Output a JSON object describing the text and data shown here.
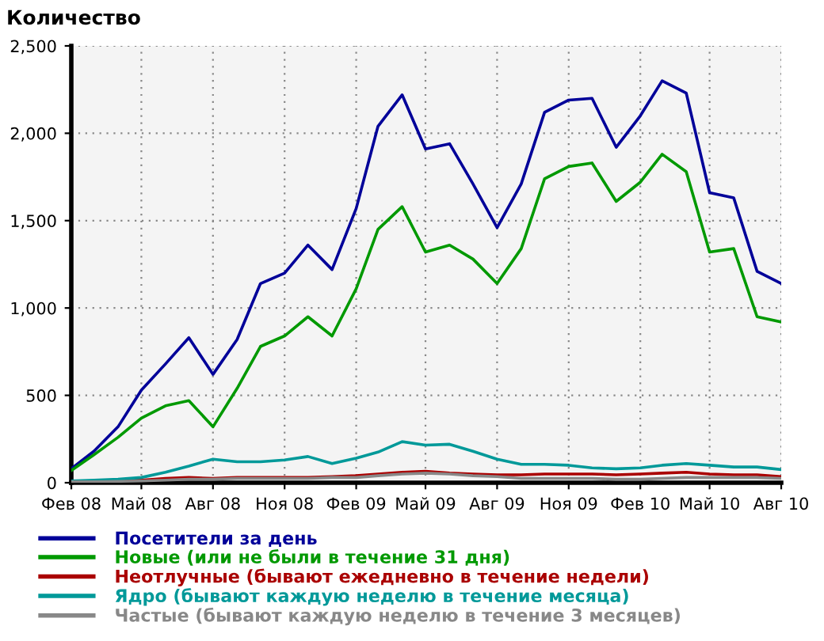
{
  "chart_data": {
    "type": "line",
    "title": "Количество",
    "x": [
      "2008-02",
      "2008-03",
      "2008-04",
      "2008-05",
      "2008-06",
      "2008-07",
      "2008-08",
      "2008-09",
      "2008-10",
      "2008-11",
      "2008-12",
      "2009-01",
      "2009-02",
      "2009-03",
      "2009-04",
      "2009-05",
      "2009-06",
      "2009-07",
      "2009-08",
      "2009-09",
      "2009-10",
      "2009-11",
      "2009-12",
      "2010-01",
      "2010-02",
      "2010-03",
      "2010-04",
      "2010-05",
      "2010-06",
      "2010-07",
      "2010-08"
    ],
    "series": [
      {
        "name": "Посетители за день",
        "color": "#000099",
        "values": [
          80,
          180,
          320,
          530,
          680,
          830,
          620,
          820,
          1140,
          1200,
          1360,
          1220,
          1570,
          2040,
          2220,
          1910,
          1940,
          1710,
          1460,
          1710,
          2120,
          2190,
          2200,
          1920,
          2100,
          2300,
          2230,
          1660,
          1630,
          1210,
          1140
        ]
      },
      {
        "name": "Новые (или не были в течение 31 дня)",
        "color": "#009900",
        "values": [
          70,
          160,
          260,
          370,
          440,
          470,
          320,
          540,
          780,
          840,
          950,
          840,
          1110,
          1450,
          1580,
          1320,
          1360,
          1280,
          1140,
          1340,
          1740,
          1810,
          1830,
          1610,
          1720,
          1880,
          1780,
          1320,
          1340,
          950,
          920
        ]
      },
      {
        "name": "Неотлучные (бывают ежедневно в течение недели)",
        "color": "#aa0000",
        "values": [
          null,
          null,
          15,
          15,
          25,
          30,
          25,
          30,
          30,
          30,
          30,
          35,
          40,
          50,
          60,
          65,
          55,
          50,
          45,
          45,
          50,
          50,
          50,
          45,
          50,
          55,
          60,
          50,
          45,
          45,
          35
        ]
      },
      {
        "name": "Ядро (бывают каждую неделю в течение месяца)",
        "color": "#009999",
        "values": [
          10,
          15,
          20,
          30,
          60,
          95,
          135,
          120,
          120,
          130,
          150,
          110,
          140,
          175,
          235,
          215,
          220,
          180,
          135,
          105,
          105,
          100,
          85,
          80,
          85,
          100,
          110,
          100,
          90,
          90,
          75
        ]
      },
      {
        "name": "Частые (бывают каждую неделю в течение 3 месяцев)",
        "color": "#888888",
        "values": [
          5,
          5,
          8,
          10,
          15,
          20,
          20,
          25,
          25,
          25,
          25,
          30,
          30,
          40,
          50,
          55,
          50,
          40,
          35,
          25,
          25,
          25,
          25,
          20,
          20,
          25,
          30,
          30,
          30,
          30,
          25
        ]
      }
    ],
    "xlim": [
      "2008-02",
      "2010-08"
    ],
    "xticks": [
      {
        "value": "2008-02",
        "label": "Фев 08"
      },
      {
        "value": "2008-05",
        "label": "Май 08"
      },
      {
        "value": "2008-08",
        "label": "Авг 08"
      },
      {
        "value": "2008-11",
        "label": "Ноя 08"
      },
      {
        "value": "2009-02",
        "label": "Фев 09"
      },
      {
        "value": "2009-05",
        "label": "Май 09"
      },
      {
        "value": "2009-08",
        "label": "Авг 09"
      },
      {
        "value": "2009-11",
        "label": "Ноя 09"
      },
      {
        "value": "2010-02",
        "label": "Фев 10"
      },
      {
        "value": "2010-05",
        "label": "Май 10"
      },
      {
        "value": "2010-08",
        "label": "Авг 10"
      }
    ],
    "ylim": [
      0,
      2500
    ],
    "yticks": [
      0,
      {
        "value": 500,
        "label": "500"
      },
      {
        "value": 1000,
        "label": "1,000"
      },
      {
        "value": 1500,
        "label": "1,500"
      },
      {
        "value": 2000,
        "label": "2,000"
      },
      {
        "value": 2500,
        "label": "2,500"
      }
    ],
    "grid": true,
    "legend": "bottom",
    "line_style": "solid",
    "marker": "none"
  }
}
